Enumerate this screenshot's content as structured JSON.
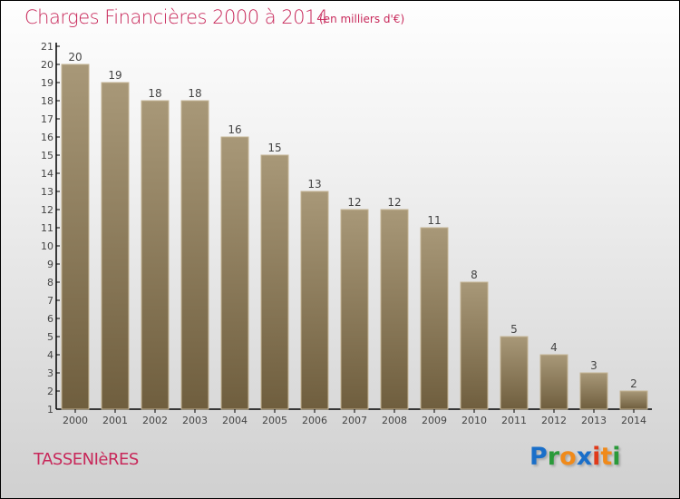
{
  "chart_data": {
    "type": "bar",
    "title": "Charges Financières 2000 à 2014",
    "subtitle": "(en milliers d'€)",
    "categories": [
      "2000",
      "2001",
      "2002",
      "2003",
      "2004",
      "2005",
      "2006",
      "2007",
      "2008",
      "2009",
      "2010",
      "2011",
      "2012",
      "2013",
      "2014"
    ],
    "values": [
      20,
      19,
      18,
      18,
      16,
      15,
      13,
      12,
      12,
      11,
      8,
      5,
      4,
      3,
      2
    ],
    "ylim": [
      1,
      21
    ],
    "yticks": [
      1,
      2,
      3,
      4,
      5,
      6,
      7,
      8,
      9,
      10,
      11,
      12,
      13,
      14,
      15,
      16,
      17,
      18,
      19,
      20,
      21
    ],
    "xlabel": "",
    "ylabel": "",
    "bar_color_top": "#a89878",
    "bar_color_bottom": "#6f5e3e"
  },
  "commune": "TASSENIèRES",
  "logo": {
    "letters": [
      "P",
      "r",
      "o",
      "x",
      "i",
      "t",
      "i"
    ],
    "colors": [
      "#1a6fc9",
      "#2a9a3a",
      "#f08a1a",
      "#1a6fc9",
      "#e03a1a",
      "#f08a1a",
      "#2a9a3a"
    ]
  }
}
